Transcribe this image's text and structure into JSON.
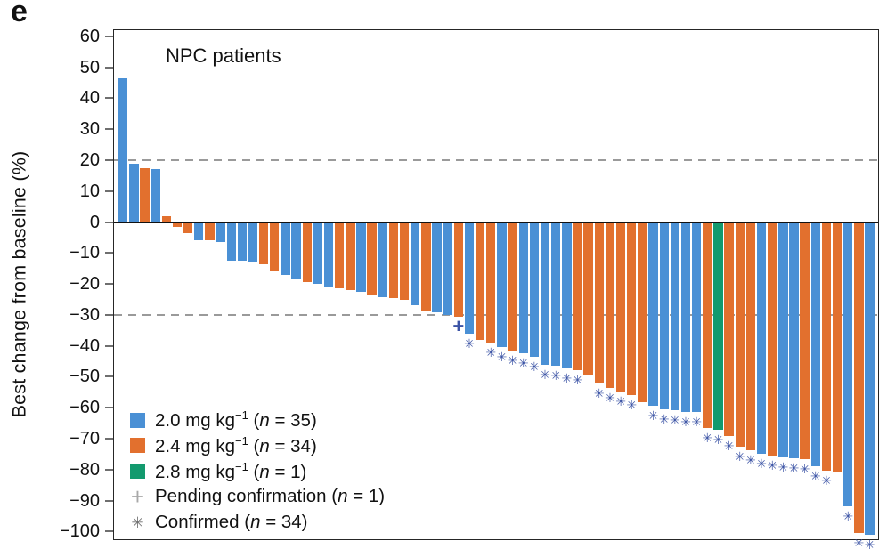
{
  "figure": {
    "panel_label": "e",
    "title": "NPC patients",
    "ylabel": "Best change from baseline (%)"
  },
  "chart_data": {
    "type": "bar",
    "subtype": "waterfall",
    "title": "NPC patients",
    "xlabel": "",
    "ylabel": "Best change from baseline (%)",
    "ylim": [
      -102.5,
      62
    ],
    "grid": false,
    "legend_position": "lower-left",
    "reference_lines": [
      20,
      -30
    ],
    "axis_color": "#262626",
    "refline_color": "#9a9a9a",
    "marker_color": "#3b53a5",
    "dose_colors": {
      "2.0": "#4a90d5",
      "2.4": "#e2702e",
      "2.8": "#139a6e"
    },
    "yticks": [
      {
        "v": 60,
        "label": "60"
      },
      {
        "v": 50,
        "label": "50"
      },
      {
        "v": 40,
        "label": "40"
      },
      {
        "v": 30,
        "label": "30"
      },
      {
        "v": 20,
        "label": "20"
      },
      {
        "v": 10,
        "label": "10"
      },
      {
        "v": 0,
        "label": "0"
      },
      {
        "v": -10,
        "label": "−10"
      },
      {
        "v": -20,
        "label": "−20"
      },
      {
        "v": -30,
        "label": "−30"
      },
      {
        "v": -40,
        "label": "−40"
      },
      {
        "v": -50,
        "label": "−50"
      },
      {
        "v": -60,
        "label": "−60"
      },
      {
        "v": -70,
        "label": "−70"
      },
      {
        "v": -80,
        "label": "−80"
      },
      {
        "v": -90,
        "label": "−90"
      },
      {
        "v": -100,
        "label": "−100"
      }
    ],
    "bars": [
      {
        "v": 46.5,
        "d": "2.0",
        "m": null
      },
      {
        "v": 19,
        "d": "2.0",
        "m": null
      },
      {
        "v": 17.5,
        "d": "2.4",
        "m": null
      },
      {
        "v": 17,
        "d": "2.0",
        "m": null
      },
      {
        "v": 2,
        "d": "2.4",
        "m": null
      },
      {
        "v": -1.5,
        "d": "2.4",
        "m": null
      },
      {
        "v": -3.5,
        "d": "2.4",
        "m": null
      },
      {
        "v": -6,
        "d": "2.0",
        "m": null
      },
      {
        "v": -6,
        "d": "2.4",
        "m": null
      },
      {
        "v": -6.5,
        "d": "2.0",
        "m": null
      },
      {
        "v": -12.5,
        "d": "2.0",
        "m": null
      },
      {
        "v": -12.5,
        "d": "2.0",
        "m": null
      },
      {
        "v": -13,
        "d": "2.0",
        "m": null
      },
      {
        "v": -13.5,
        "d": "2.4",
        "m": null
      },
      {
        "v": -16,
        "d": "2.4",
        "m": null
      },
      {
        "v": -17,
        "d": "2.0",
        "m": null
      },
      {
        "v": -18.5,
        "d": "2.0",
        "m": null
      },
      {
        "v": -19.5,
        "d": "2.4",
        "m": null
      },
      {
        "v": -20,
        "d": "2.0",
        "m": null
      },
      {
        "v": -21,
        "d": "2.0",
        "m": null
      },
      {
        "v": -21.5,
        "d": "2.4",
        "m": null
      },
      {
        "v": -22,
        "d": "2.4",
        "m": null
      },
      {
        "v": -22.5,
        "d": "2.0",
        "m": null
      },
      {
        "v": -23.5,
        "d": "2.4",
        "m": null
      },
      {
        "v": -24.3,
        "d": "2.0",
        "m": null
      },
      {
        "v": -24.7,
        "d": "2.4",
        "m": null
      },
      {
        "v": -25.2,
        "d": "2.4",
        "m": null
      },
      {
        "v": -27,
        "d": "2.0",
        "m": null
      },
      {
        "v": -28.8,
        "d": "2.4",
        "m": null
      },
      {
        "v": -29.3,
        "d": "2.0",
        "m": null
      },
      {
        "v": -30,
        "d": "2.0",
        "m": null
      },
      {
        "v": -30.5,
        "d": "2.4",
        "m": "pending"
      },
      {
        "v": -36,
        "d": "2.0",
        "m": "confirmed"
      },
      {
        "v": -38,
        "d": "2.4",
        "m": null
      },
      {
        "v": -39,
        "d": "2.4",
        "m": "confirmed"
      },
      {
        "v": -40.5,
        "d": "2.0",
        "m": "confirmed"
      },
      {
        "v": -41.5,
        "d": "2.4",
        "m": "confirmed"
      },
      {
        "v": -42.5,
        "d": "2.0",
        "m": "confirmed"
      },
      {
        "v": -43.5,
        "d": "2.0",
        "m": "confirmed"
      },
      {
        "v": -46,
        "d": "2.0",
        "m": "confirmed"
      },
      {
        "v": -46.5,
        "d": "2.0",
        "m": "confirmed"
      },
      {
        "v": -47.3,
        "d": "2.0",
        "m": "confirmed"
      },
      {
        "v": -48,
        "d": "2.4",
        "m": "confirmed"
      },
      {
        "v": -49.7,
        "d": "2.4",
        "m": null
      },
      {
        "v": -52.3,
        "d": "2.4",
        "m": "confirmed"
      },
      {
        "v": -53.5,
        "d": "2.4",
        "m": "confirmed"
      },
      {
        "v": -54.7,
        "d": "2.4",
        "m": "confirmed"
      },
      {
        "v": -56,
        "d": "2.4",
        "m": "confirmed"
      },
      {
        "v": -58.2,
        "d": "2.4",
        "m": null
      },
      {
        "v": -59.5,
        "d": "2.0",
        "m": "confirmed"
      },
      {
        "v": -60.5,
        "d": "2.0",
        "m": "confirmed"
      },
      {
        "v": -60.8,
        "d": "2.0",
        "m": "confirmed"
      },
      {
        "v": -61.3,
        "d": "2.0",
        "m": "confirmed"
      },
      {
        "v": -61.5,
        "d": "2.0",
        "m": "confirmed"
      },
      {
        "v": -66.5,
        "d": "2.4",
        "m": "confirmed"
      },
      {
        "v": -67,
        "d": "2.8",
        "m": "confirmed"
      },
      {
        "v": -69,
        "d": "2.4",
        "m": "confirmed"
      },
      {
        "v": -72.5,
        "d": "2.4",
        "m": "confirmed"
      },
      {
        "v": -73.7,
        "d": "2.4",
        "m": "confirmed"
      },
      {
        "v": -74.9,
        "d": "2.0",
        "m": "confirmed"
      },
      {
        "v": -75.5,
        "d": "2.4",
        "m": "confirmed"
      },
      {
        "v": -76,
        "d": "2.0",
        "m": "confirmed"
      },
      {
        "v": -76.3,
        "d": "2.0",
        "m": "confirmed"
      },
      {
        "v": -76.6,
        "d": "2.4",
        "m": "confirmed"
      },
      {
        "v": -79,
        "d": "2.0",
        "m": "confirmed"
      },
      {
        "v": -80.4,
        "d": "2.4",
        "m": "confirmed"
      },
      {
        "v": -80.8,
        "d": "2.4",
        "m": null
      },
      {
        "v": -92,
        "d": "2.0",
        "m": "confirmed"
      },
      {
        "v": -100.5,
        "d": "2.4",
        "m": "confirmed"
      },
      {
        "v": -101,
        "d": "2.0",
        "m": "confirmed"
      }
    ],
    "legend": [
      {
        "glyph": "square",
        "color": "#4a90d5",
        "dose": "2.0 mg kg",
        "exp": "−1",
        "n": "35"
      },
      {
        "glyph": "square",
        "color": "#e2702e",
        "dose": "2.4 mg kg",
        "exp": "−1",
        "n": "34"
      },
      {
        "glyph": "square",
        "color": "#139a6e",
        "dose": "2.8 mg kg",
        "exp": "−1",
        "n": "1"
      },
      {
        "glyph": "plus",
        "color": "#a8a8a8",
        "label": "Pending confirmation",
        "n": "1"
      },
      {
        "glyph": "asterisk",
        "color": "#6e6e6e",
        "label": "Confirmed",
        "n": "34"
      }
    ],
    "plot_markers": {
      "confirmed": "✳",
      "pending": "+"
    }
  }
}
